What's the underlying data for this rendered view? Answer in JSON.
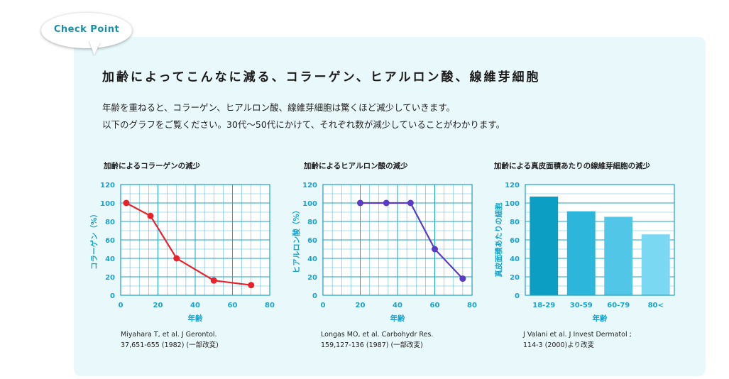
{
  "bubble": {
    "label": "Check Point"
  },
  "heading": "加齢によってこんなに減る、コラーゲン、ヒアルロン酸、線維芽細胞",
  "intro": [
    "年齢を重ねると、コラーゲン、ヒアルロン酸、線維芽細胞は驚くほど減少していきます。",
    "以下のグラフをご覧ください。30代～50代にかけて、それぞれ数が減少していることがわかります。"
  ],
  "colors": {
    "grid": "#1aa3c8",
    "axis_text": "#1aa3c8",
    "collagen": "#e8212b",
    "hyaluronic": "#5a3bc4",
    "bars": [
      "#0d9ec4",
      "#2cb6dc",
      "#52c6e6",
      "#7ad8f2"
    ]
  },
  "chart_data": [
    {
      "type": "line",
      "title": "加齢によるコラーゲンの減少",
      "xlabel": "年齢",
      "ylabel": "コラーゲン（%）",
      "xlim": [
        0,
        80
      ],
      "ylim": [
        0,
        120
      ],
      "xticks": [
        "0",
        "20",
        "40",
        "60",
        "80"
      ],
      "yticks": [
        "0",
        "20",
        "40",
        "60",
        "80",
        "100",
        "120"
      ],
      "grid": true,
      "series": [
        {
          "x": [
            3,
            16,
            30,
            50,
            70
          ],
          "y": [
            100,
            86,
            40,
            16,
            11
          ]
        }
      ],
      "reference": [
        "Miyahara T, et al. J Gerontol.",
        "37,651-655 (1982) (一部改変)"
      ]
    },
    {
      "type": "line",
      "title": "加齢によるヒアルロン酸の減少",
      "xlabel": "年齢",
      "ylabel": "ヒアルロン酸（%）",
      "xlim": [
        0,
        80
      ],
      "ylim": [
        0,
        120
      ],
      "xticks": [
        "0",
        "20",
        "40",
        "60",
        "80"
      ],
      "yticks": [
        "0",
        "20",
        "40",
        "60",
        "80",
        "100",
        "120"
      ],
      "grid": true,
      "series": [
        {
          "x": [
            20,
            34,
            47,
            60,
            75
          ],
          "y": [
            100,
            100,
            100,
            50,
            18
          ]
        }
      ],
      "reference": [
        "Longas MO, et al. Carbohydr Res.",
        "159,127-136 (1987) (一部改変)"
      ]
    },
    {
      "type": "bar",
      "title": "加齢による真皮面積あたりの線維芽細胞の減少",
      "xlabel": "年齢",
      "ylabel": "真皮面積あたりの細胞",
      "ylim": [
        0,
        120
      ],
      "yticks": [
        "0",
        "20",
        "40",
        "60",
        "80",
        "100",
        "120"
      ],
      "grid": true,
      "categories": [
        "18-29",
        "30-59",
        "60-79",
        "80<"
      ],
      "values": [
        107,
        91,
        85,
        66
      ],
      "reference": [
        "J Valani et al. J Invest Dermatol ;",
        "114-3 (2000)より改変"
      ]
    }
  ]
}
